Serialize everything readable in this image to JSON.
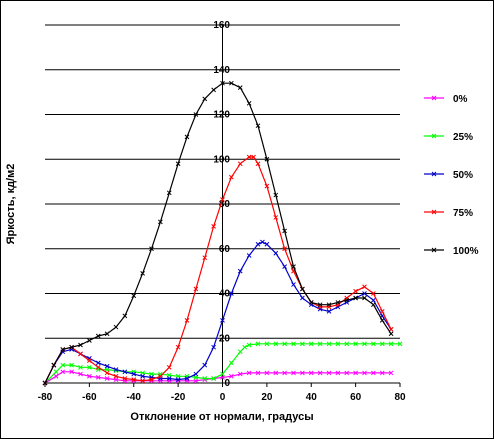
{
  "chart_data": {
    "type": "line",
    "xlabel": "Отклонение от нормали, градусы",
    "ylabel": "Яркость, кд/м2",
    "xlim": [
      -80,
      80
    ],
    "ylim": [
      0,
      160
    ],
    "x_ticks": [
      "-80",
      "-60",
      "-40",
      "-20",
      "0",
      "20",
      "40",
      "60",
      "80"
    ],
    "y_ticks": [
      "0",
      "20",
      "40",
      "60",
      "80",
      "100",
      "120",
      "140",
      "160"
    ],
    "grid": "horizontal",
    "legend_position": "right",
    "series": [
      {
        "name": "0%",
        "color": "#ff00ff",
        "points": [
          [
            -80,
            0
          ],
          [
            -75,
            3
          ],
          [
            -72,
            5
          ],
          [
            -68,
            5
          ],
          [
            -64,
            4
          ],
          [
            -60,
            3
          ],
          [
            -56,
            2.5
          ],
          [
            -52,
            2
          ],
          [
            -48,
            1.5
          ],
          [
            -44,
            1
          ],
          [
            -40,
            1
          ],
          [
            -36,
            1
          ],
          [
            -32,
            1
          ],
          [
            -28,
            1
          ],
          [
            -24,
            1
          ],
          [
            -20,
            1
          ],
          [
            -16,
            1
          ],
          [
            -12,
            1
          ],
          [
            -8,
            1.5
          ],
          [
            -4,
            2
          ],
          [
            0,
            2.5
          ],
          [
            4,
            3
          ],
          [
            8,
            4
          ],
          [
            12,
            4.5
          ],
          [
            16,
            4.5
          ],
          [
            20,
            4.5
          ],
          [
            24,
            4.5
          ],
          [
            28,
            4.5
          ],
          [
            32,
            4.5
          ],
          [
            36,
            4.5
          ],
          [
            40,
            4.5
          ],
          [
            44,
            4.5
          ],
          [
            48,
            4.5
          ],
          [
            52,
            4.5
          ],
          [
            56,
            4.5
          ],
          [
            60,
            4.5
          ],
          [
            64,
            4.5
          ],
          [
            68,
            4.5
          ],
          [
            72,
            4.5
          ],
          [
            76,
            4.5
          ]
        ]
      },
      {
        "name": "25%",
        "color": "#00ff00",
        "points": [
          [
            -80,
            0
          ],
          [
            -75,
            5
          ],
          [
            -72,
            8
          ],
          [
            -68,
            8
          ],
          [
            -64,
            7
          ],
          [
            -60,
            7
          ],
          [
            -56,
            6
          ],
          [
            -52,
            6
          ],
          [
            -48,
            5.5
          ],
          [
            -44,
            5
          ],
          [
            -40,
            5
          ],
          [
            -36,
            4.5
          ],
          [
            -32,
            4
          ],
          [
            -28,
            4
          ],
          [
            -24,
            3.5
          ],
          [
            -20,
            3
          ],
          [
            -16,
            3
          ],
          [
            -12,
            2.5
          ],
          [
            -8,
            2
          ],
          [
            -4,
            2
          ],
          [
            0,
            4
          ],
          [
            4,
            9
          ],
          [
            8,
            14
          ],
          [
            10,
            16
          ],
          [
            12,
            17
          ],
          [
            16,
            17.5
          ],
          [
            20,
            17.5
          ],
          [
            24,
            17.5
          ],
          [
            28,
            17.5
          ],
          [
            32,
            17.5
          ],
          [
            36,
            17.5
          ],
          [
            40,
            17.5
          ],
          [
            44,
            17.5
          ],
          [
            48,
            17.5
          ],
          [
            52,
            17.5
          ],
          [
            56,
            17.5
          ],
          [
            60,
            17.5
          ],
          [
            64,
            17.5
          ],
          [
            68,
            17.5
          ],
          [
            72,
            17.5
          ],
          [
            76,
            17.5
          ],
          [
            80,
            17.5
          ]
        ]
      },
      {
        "name": "50%",
        "color": "#0000cc",
        "points": [
          [
            -80,
            0
          ],
          [
            -76,
            8
          ],
          [
            -72,
            14
          ],
          [
            -68,
            15
          ],
          [
            -64,
            13
          ],
          [
            -60,
            11
          ],
          [
            -56,
            9
          ],
          [
            -52,
            7.5
          ],
          [
            -48,
            6
          ],
          [
            -44,
            5
          ],
          [
            -40,
            4
          ],
          [
            -36,
            3
          ],
          [
            -32,
            2.5
          ],
          [
            -28,
            2
          ],
          [
            -24,
            2
          ],
          [
            -20,
            1.5
          ],
          [
            -16,
            2
          ],
          [
            -12,
            4
          ],
          [
            -8,
            8
          ],
          [
            -4,
            16
          ],
          [
            0,
            28
          ],
          [
            4,
            40
          ],
          [
            8,
            50
          ],
          [
            12,
            57
          ],
          [
            16,
            62
          ],
          [
            18,
            63
          ],
          [
            20,
            62
          ],
          [
            24,
            58
          ],
          [
            28,
            52
          ],
          [
            32,
            44
          ],
          [
            36,
            38
          ],
          [
            40,
            35
          ],
          [
            44,
            33
          ],
          [
            48,
            32
          ],
          [
            52,
            34
          ],
          [
            56,
            36
          ],
          [
            60,
            38
          ],
          [
            64,
            40
          ],
          [
            68,
            37
          ],
          [
            72,
            30
          ],
          [
            76,
            24
          ]
        ]
      },
      {
        "name": "75%",
        "color": "#ff0000",
        "points": [
          [
            -80,
            0
          ],
          [
            -76,
            8
          ],
          [
            -72,
            15
          ],
          [
            -68,
            16
          ],
          [
            -64,
            13
          ],
          [
            -60,
            10
          ],
          [
            -56,
            7
          ],
          [
            -52,
            4.5
          ],
          [
            -48,
            3
          ],
          [
            -44,
            2
          ],
          [
            -40,
            1.5
          ],
          [
            -36,
            1
          ],
          [
            -32,
            1.5
          ],
          [
            -28,
            3
          ],
          [
            -24,
            7
          ],
          [
            -20,
            16
          ],
          [
            -16,
            28
          ],
          [
            -12,
            42
          ],
          [
            -8,
            56
          ],
          [
            -4,
            70
          ],
          [
            0,
            82
          ],
          [
            4,
            92
          ],
          [
            8,
            98
          ],
          [
            12,
            101
          ],
          [
            14,
            101
          ],
          [
            16,
            98
          ],
          [
            20,
            88
          ],
          [
            24,
            74
          ],
          [
            28,
            60
          ],
          [
            32,
            50
          ],
          [
            36,
            42
          ],
          [
            40,
            36
          ],
          [
            44,
            34
          ],
          [
            48,
            34
          ],
          [
            52,
            35
          ],
          [
            56,
            38
          ],
          [
            60,
            41
          ],
          [
            64,
            43
          ],
          [
            68,
            40
          ],
          [
            72,
            32
          ],
          [
            76,
            24
          ]
        ]
      },
      {
        "name": "100%",
        "color": "#000000",
        "points": [
          [
            -80,
            0
          ],
          [
            -76,
            8
          ],
          [
            -72,
            15
          ],
          [
            -68,
            16
          ],
          [
            -64,
            17
          ],
          [
            -60,
            19
          ],
          [
            -56,
            21
          ],
          [
            -52,
            22
          ],
          [
            -48,
            25
          ],
          [
            -44,
            30
          ],
          [
            -40,
            39
          ],
          [
            -36,
            49
          ],
          [
            -32,
            60
          ],
          [
            -28,
            72
          ],
          [
            -24,
            85
          ],
          [
            -20,
            98
          ],
          [
            -16,
            110
          ],
          [
            -12,
            120
          ],
          [
            -8,
            127
          ],
          [
            -4,
            131
          ],
          [
            0,
            134
          ],
          [
            4,
            134
          ],
          [
            8,
            132
          ],
          [
            12,
            125
          ],
          [
            16,
            115
          ],
          [
            20,
            100
          ],
          [
            24,
            84
          ],
          [
            28,
            68
          ],
          [
            32,
            52
          ],
          [
            36,
            42
          ],
          [
            40,
            36
          ],
          [
            44,
            35
          ],
          [
            48,
            35
          ],
          [
            52,
            36
          ],
          [
            56,
            37
          ],
          [
            60,
            38
          ],
          [
            64,
            38
          ],
          [
            68,
            35
          ],
          [
            72,
            28
          ],
          [
            76,
            22
          ]
        ]
      }
    ]
  }
}
